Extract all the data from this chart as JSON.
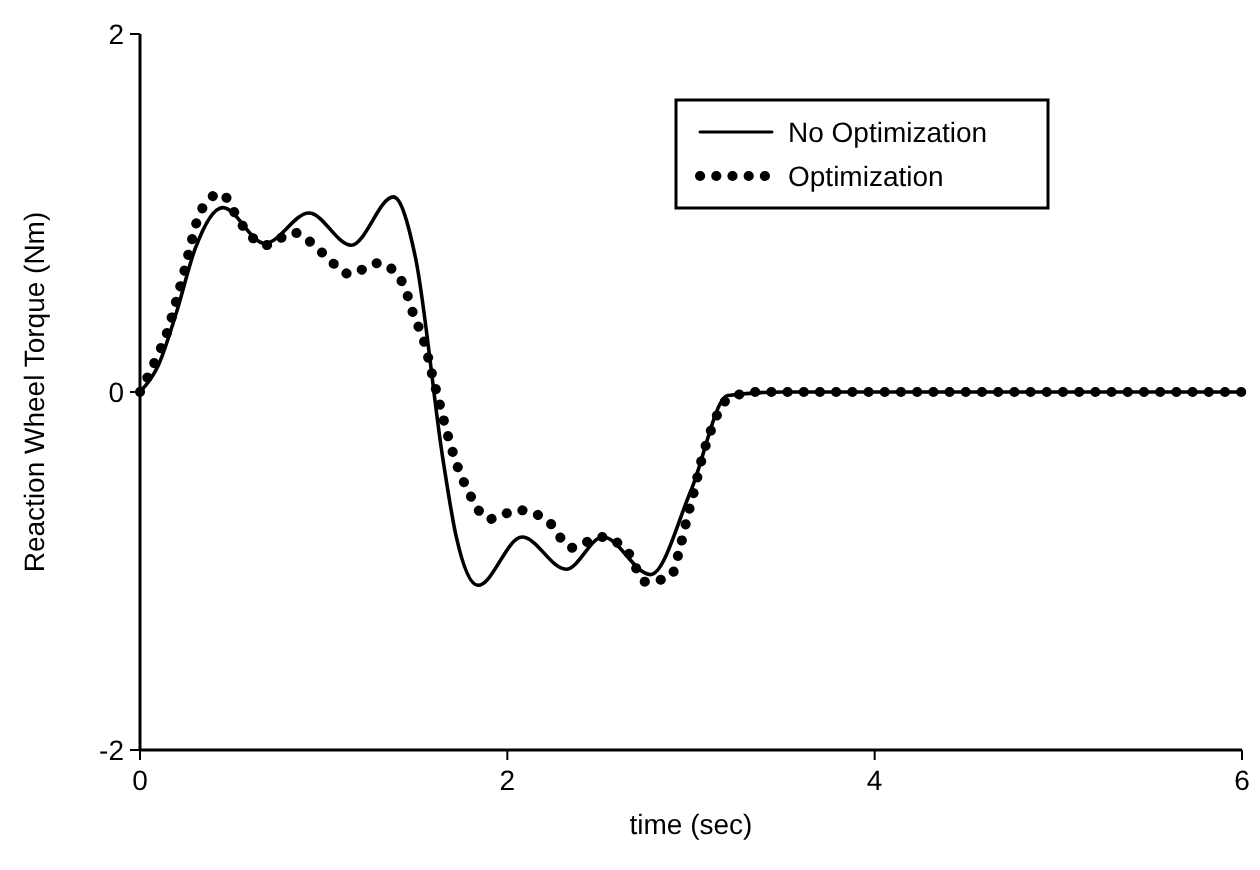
{
  "chart_data": {
    "type": "line",
    "xlabel": "time (sec)",
    "ylabel": "Reaction Wheel Torque (Nm)",
    "xlim": [
      0,
      6
    ],
    "ylim": [
      -2,
      2
    ],
    "xticks": [
      0,
      2,
      4,
      6
    ],
    "yticks": [
      -2,
      0,
      2
    ],
    "grid": false,
    "legend": "top right",
    "series": [
      {
        "name": "No Optimization",
        "color": "#000000",
        "line_style": "solid",
        "x": [
          0,
          0.1,
          0.2,
          0.3,
          0.45,
          0.68,
          0.92,
          1.15,
          1.38,
          1.5,
          1.65,
          1.72,
          1.84,
          2.08,
          2.32,
          2.52,
          2.78,
          3.0,
          3.2,
          3.5,
          4,
          5,
          6
        ],
        "values": [
          0,
          0.15,
          0.45,
          0.8,
          1.03,
          0.83,
          1.0,
          0.82,
          1.09,
          0.75,
          -0.38,
          -0.8,
          -1.08,
          -0.81,
          -0.99,
          -0.81,
          -1.02,
          -0.55,
          -0.02,
          0,
          0,
          0,
          0
        ]
      },
      {
        "name": "Optimization",
        "color": "#000000",
        "line_style": "dotted",
        "x": [
          0,
          0.09,
          0.15,
          0.2,
          0.24,
          0.28,
          0.33,
          0.44,
          0.55,
          0.68,
          0.84,
          0.99,
          1.14,
          1.3,
          1.43,
          1.49,
          1.55,
          1.59,
          1.63,
          1.67,
          1.72,
          1.79,
          1.9,
          2.06,
          2.22,
          2.35,
          2.51,
          2.66,
          2.75,
          2.89,
          2.94,
          2.98,
          3.02,
          3.06,
          3.11,
          3.2,
          3.35,
          3.5,
          3.65,
          3.8,
          3.95,
          4.1,
          4.25,
          4.4,
          4.55,
          4.7,
          4.85,
          5.0,
          5.15,
          5.3,
          5.45,
          5.6,
          5.75,
          5.9,
          6.0
        ],
        "values": [
          0,
          0.19,
          0.34,
          0.52,
          0.67,
          0.84,
          1.01,
          1.11,
          0.94,
          0.82,
          0.89,
          0.78,
          0.66,
          0.72,
          0.61,
          0.43,
          0.27,
          0.1,
          -0.06,
          -0.22,
          -0.39,
          -0.56,
          -0.71,
          -0.66,
          -0.72,
          -0.87,
          -0.81,
          -0.9,
          -1.06,
          -1.03,
          -0.87,
          -0.7,
          -0.54,
          -0.37,
          -0.21,
          -0.04,
          0,
          0,
          0,
          0,
          0,
          0,
          0,
          0,
          0,
          0,
          0,
          0,
          0,
          0,
          0,
          0,
          0,
          0,
          0
        ]
      }
    ]
  }
}
